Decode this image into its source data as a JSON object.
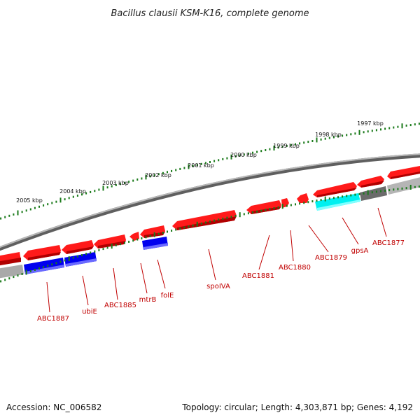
{
  "title": "Bacillus clausii KSM-K16, complete genome",
  "accession_text": "Accession: NC_006582",
  "summary_text": "Topology: circular; Length: 4,303,871 bp; Genes: 4,192",
  "colors": {
    "cds": "#ff0000",
    "cds_shade": "#a00000",
    "highlight_blue": "#0000ee",
    "highlight_cyan": "#00ffff",
    "backbone": "#888888",
    "ticks": "#1a7a1a",
    "label": "#c00000"
  },
  "scale_ticks": [
    {
      "label": "2005 kbp"
    },
    {
      "label": "2004 kbp"
    },
    {
      "label": "2003 kbp"
    },
    {
      "label": "2002 kbp"
    },
    {
      "label": "2001 kbp"
    },
    {
      "label": "2000 kbp"
    },
    {
      "label": "1999 kbp"
    },
    {
      "label": "1998 kbp"
    },
    {
      "label": "1997 kbp"
    }
  ],
  "genes": [
    {
      "name": "ABC1887"
    },
    {
      "name": "ubiE"
    },
    {
      "name": "ABC1885"
    },
    {
      "name": "mtrB"
    },
    {
      "name": "folE"
    },
    {
      "name": "spoIVA"
    },
    {
      "name": "ABC1881"
    },
    {
      "name": "ABC1880"
    },
    {
      "name": "ABC1879"
    },
    {
      "name": "gpsA"
    },
    {
      "name": "ABC1877"
    }
  ]
}
